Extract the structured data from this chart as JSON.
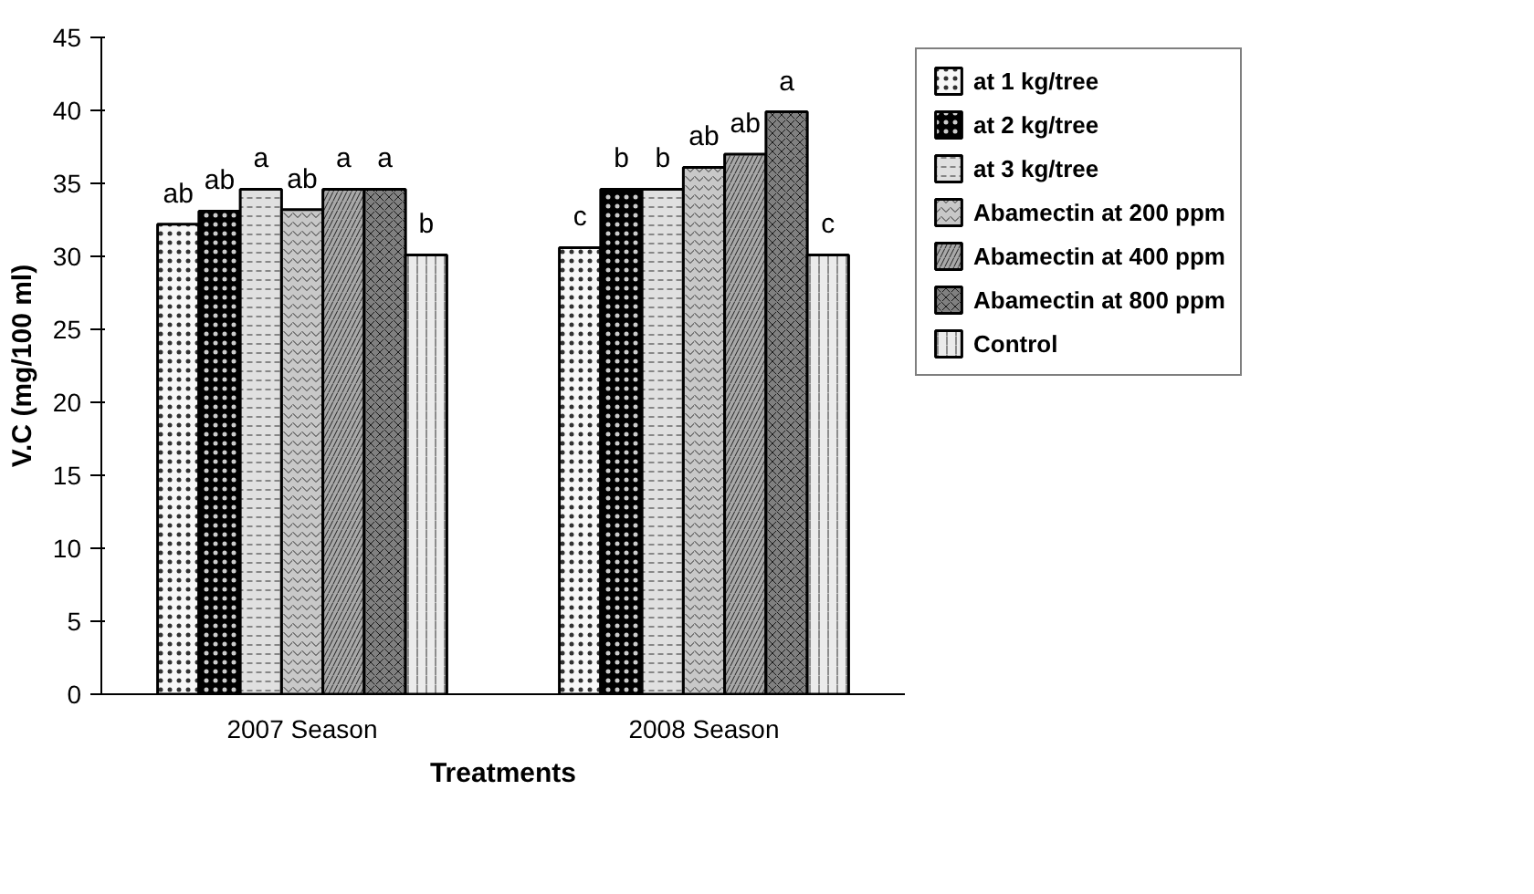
{
  "chart_data": {
    "type": "bar",
    "xlabel": "Treatments",
    "ylabel": "V.C (mg/100 ml)",
    "categories": [
      "2007 Season",
      "2008 Season"
    ],
    "series": [
      {
        "name": "at 1 kg/tree",
        "color": "#f7f7f7",
        "values": [
          32.2,
          30.6
        ],
        "value_labels": [
          "ab",
          "c"
        ]
      },
      {
        "name": "at 2 kg/tree",
        "color": "#000000",
        "values": [
          33.1,
          34.6
        ],
        "value_labels": [
          "ab",
          "b"
        ]
      },
      {
        "name": "at 3 kg/tree",
        "color": "#e0e0e0",
        "values": [
          34.6,
          34.6
        ],
        "value_labels": [
          "a",
          "b"
        ]
      },
      {
        "name": "Abamectin at 200 ppm",
        "color": "#c8c8c8",
        "values": [
          33.2,
          36.1
        ],
        "value_labels": [
          "ab",
          "ab"
        ]
      },
      {
        "name": "Abamectin at 400 ppm",
        "color": "#a8a8a8",
        "values": [
          34.6,
          37.0
        ],
        "value_labels": [
          "a",
          "ab"
        ]
      },
      {
        "name": "Abamectin at 800 ppm",
        "color": "#808080",
        "values": [
          34.6,
          39.9
        ],
        "value_labels": [
          "a",
          "a"
        ]
      },
      {
        "name": "Control",
        "color": "#ebebeb",
        "values": [
          30.1,
          30.1
        ],
        "value_labels": [
          "b",
          "c"
        ]
      }
    ],
    "ylim": [
      0,
      45
    ],
    "yticks": [
      0,
      5,
      10,
      15,
      20,
      25,
      30,
      35,
      40,
      45
    ],
    "grid": false,
    "legend": "right"
  }
}
